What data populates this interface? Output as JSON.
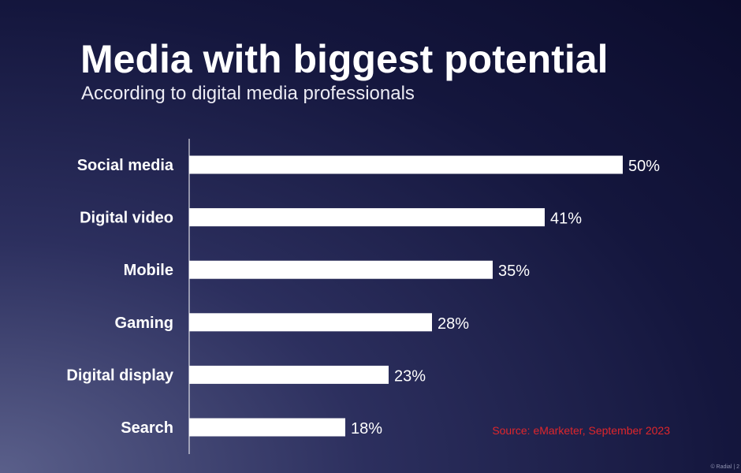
{
  "chart_data": {
    "type": "bar",
    "orientation": "horizontal",
    "title": "Media with biggest potential",
    "subtitle": "According to digital media professionals",
    "categories": [
      "Social media",
      "Digital video",
      "Mobile",
      "Gaming",
      "Digital display",
      "Search"
    ],
    "values": [
      50,
      41,
      35,
      28,
      23,
      18
    ],
    "value_labels": [
      "50%",
      "41%",
      "35%",
      "28%",
      "23%",
      "18%"
    ],
    "unit": "%",
    "xlim": [
      0,
      50
    ],
    "grid": false,
    "legend": "none",
    "bar_color": "#ffffff",
    "source": "Source: eMarketer, September 2023"
  },
  "footer": {
    "copyright": "© Radial | 2"
  },
  "colors": {
    "background": "#14163d",
    "accent": "#e0262b"
  }
}
